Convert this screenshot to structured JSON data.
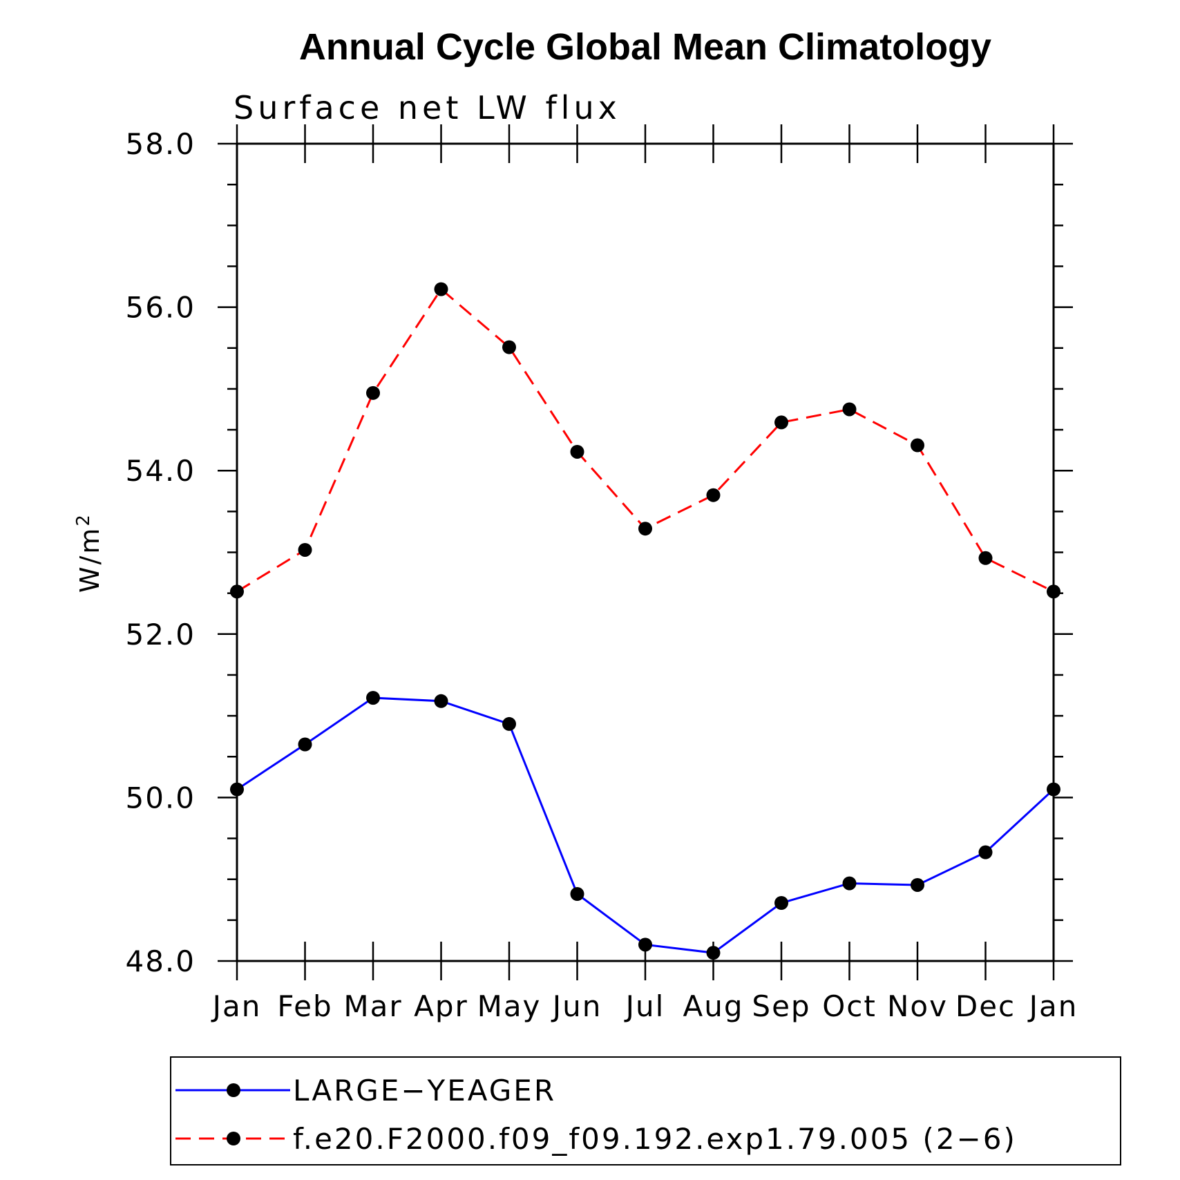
{
  "chart_data": {
    "type": "line",
    "title": "Annual Cycle Global Mean Climatology",
    "subtitle": "Surface net LW flux",
    "xlabel": "",
    "ylabel": "W/m",
    "ylabel_superscript": "2",
    "categories": [
      "Jan",
      "Feb",
      "Mar",
      "Apr",
      "May",
      "Jun",
      "Jul",
      "Aug",
      "Sep",
      "Oct",
      "Nov",
      "Dec",
      "Jan"
    ],
    "ylim": [
      48.0,
      58.0
    ],
    "yticks": [
      "48.0",
      "50.0",
      "52.0",
      "54.0",
      "56.0",
      "58.0"
    ],
    "grid": false,
    "legend_position": "bottom",
    "series": [
      {
        "name": "LARGE−YEAGER",
        "color": "#0000ff",
        "dash": "solid",
        "values": [
          50.1,
          50.65,
          51.22,
          51.18,
          50.9,
          48.82,
          48.2,
          48.1,
          48.71,
          48.95,
          48.93,
          49.33,
          50.1
        ]
      },
      {
        "name": "f.e20.F2000.f09_f09.192.exp1.79.005 (2−6)",
        "color": "#ff0000",
        "dash": "dashed",
        "values": [
          52.52,
          53.03,
          54.95,
          56.22,
          55.51,
          54.23,
          53.29,
          53.7,
          54.59,
          54.75,
          54.31,
          52.93,
          52.52
        ]
      }
    ]
  }
}
